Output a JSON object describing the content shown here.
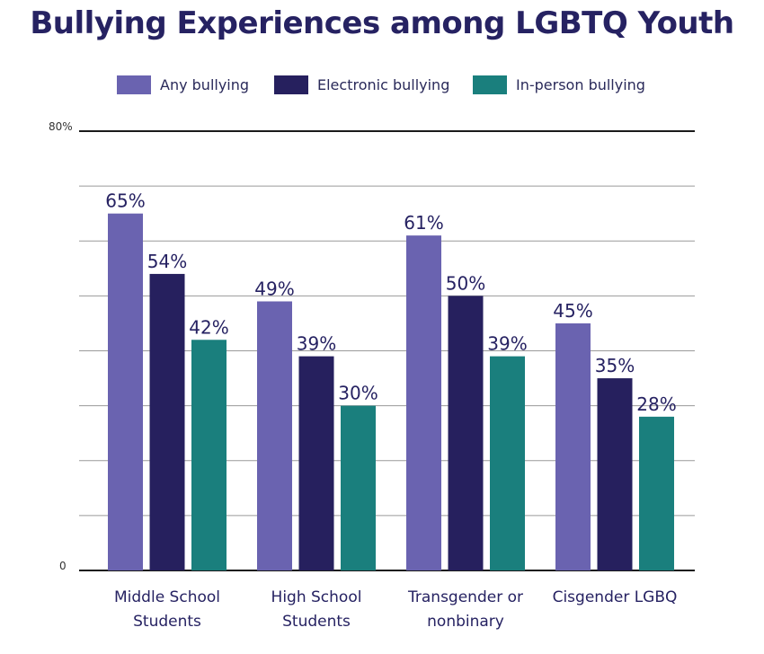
{
  "chart_data": {
    "type": "bar",
    "title": "Bullying Experiences among LGBTQ Youth",
    "categories": [
      [
        "Middle School",
        "Students"
      ],
      [
        "High School",
        "Students"
      ],
      [
        "Transgender or",
        "nonbinary"
      ],
      [
        "Cisgender LGBQ"
      ]
    ],
    "series": [
      {
        "name": "Any bullying",
        "color": "#6a63b0",
        "values": [
          65,
          49,
          61,
          45
        ],
        "labels": [
          "65%",
          "49%",
          "61%",
          "45%"
        ]
      },
      {
        "name": "Electronic bullying",
        "color": "#26205e",
        "values": [
          54,
          39,
          50,
          35
        ],
        "labels": [
          "54%",
          "39%",
          "50%",
          "35%"
        ]
      },
      {
        "name": "In-person bullying",
        "color": "#1a7f7d",
        "values": [
          42,
          30,
          39,
          28
        ],
        "labels": [
          "42%",
          "30%",
          "39%",
          "28%"
        ]
      }
    ],
    "ylim": [
      0,
      80
    ],
    "ytick_labels": {
      "max": "80%",
      "min": "0"
    },
    "grid": true,
    "legend": "top"
  }
}
